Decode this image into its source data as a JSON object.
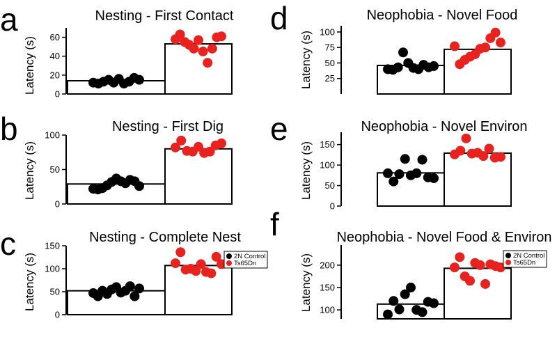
{
  "colors": {
    "control": "#000000",
    "ts65dn": "#e8231f"
  },
  "legend": {
    "control": "2N Control",
    "ts65dn": "Ts65Dn"
  },
  "chart_data": [
    {
      "panel": "a",
      "type": "bar",
      "title": "Nesting - First Contact",
      "ylabel": "Latency (s)",
      "ylim": [
        0,
        70
      ],
      "yticks": [
        0,
        20,
        40,
        60
      ],
      "legend": false,
      "series": [
        {
          "group": "control",
          "mean": 14,
          "points": [
            12,
            11,
            13,
            15,
            12,
            16,
            11,
            13,
            17,
            15
          ]
        },
        {
          "group": "ts65dn",
          "mean": 53,
          "points": [
            58,
            63,
            55,
            52,
            48,
            57,
            45,
            33,
            48,
            60,
            61
          ]
        }
      ]
    },
    {
      "panel": "b",
      "type": "bar",
      "title": "Nesting - First Dig",
      "ylabel": "Latency (s)",
      "ylim": [
        0,
        100
      ],
      "yticks": [
        0,
        50,
        100
      ],
      "legend": false,
      "series": [
        {
          "group": "control",
          "mean": 29,
          "points": [
            22,
            21,
            23,
            27,
            32,
            37,
            33,
            30,
            35,
            33,
            26
          ]
        },
        {
          "group": "ts65dn",
          "mean": 80,
          "points": [
            82,
            92,
            77,
            76,
            83,
            74,
            76,
            85,
            88
          ]
        }
      ]
    },
    {
      "panel": "c",
      "type": "bar",
      "title": "Nesting - Complete Nest",
      "ylabel": "Latency (s)",
      "ylim": [
        0,
        150
      ],
      "yticks": [
        0,
        50,
        100,
        150
      ],
      "legend": true,
      "series": [
        {
          "group": "control",
          "mean": 52,
          "points": [
            47,
            40,
            52,
            45,
            55,
            60,
            48,
            52,
            62,
            40,
            57
          ]
        },
        {
          "group": "ts65dn",
          "mean": 107,
          "points": [
            112,
            136,
            98,
            100,
            95,
            110,
            93,
            90,
            126,
            110
          ]
        }
      ]
    },
    {
      "panel": "d",
      "type": "bar",
      "title": "Neophobia - Novel Food",
      "ylabel": "Latency (s)",
      "ylim": [
        0,
        110
      ],
      "yticks": [
        25,
        50,
        75,
        100
      ],
      "legend": false,
      "series": [
        {
          "group": "control",
          "mean": 46,
          "points": [
            40,
            39,
            43,
            67,
            50,
            42,
            40,
            47,
            43,
            45
          ]
        },
        {
          "group": "ts65dn",
          "mean": 72,
          "points": [
            77,
            48,
            55,
            60,
            64,
            73,
            75,
            90,
            99,
            83
          ]
        }
      ]
    },
    {
      "panel": "e",
      "type": "bar",
      "title": "Neophobia - Novel Environ",
      "ylabel": "Latency (s)",
      "ylim": [
        0,
        180
      ],
      "yticks": [
        0,
        50,
        100,
        150
      ],
      "legend": false,
      "series": [
        {
          "group": "control",
          "mean": 81,
          "points": [
            80,
            60,
            78,
            115,
            75,
            80,
            113,
            70,
            68
          ]
        },
        {
          "group": "ts65dn",
          "mean": 129,
          "points": [
            126,
            135,
            165,
            128,
            130,
            122,
            140,
            118,
            120
          ]
        }
      ]
    },
    {
      "panel": "f",
      "type": "bar",
      "title": "Neophobia - Novel Food & Environ",
      "ylabel": "Latency (s)",
      "ylim": [
        80,
        245
      ],
      "yticks": [
        100,
        150,
        200
      ],
      "legend": true,
      "series": [
        {
          "group": "control",
          "mean": 113,
          "points": [
            90,
            120,
            101,
            135,
            150,
            100,
            95,
            118,
            115
          ]
        },
        {
          "group": "ts65dn",
          "mean": 193,
          "points": [
            195,
            218,
            175,
            165,
            205,
            200,
            158,
            202,
            198,
            195
          ]
        }
      ]
    }
  ]
}
